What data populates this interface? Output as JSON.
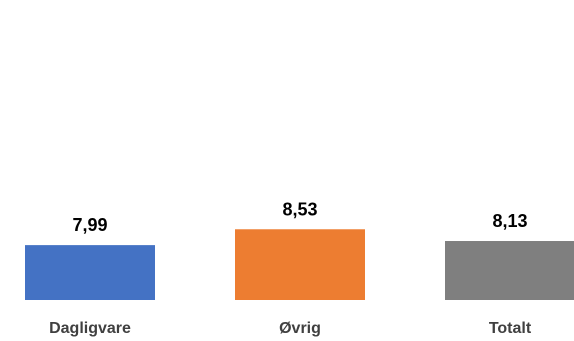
{
  "chart_data": {
    "type": "bar",
    "categories": [
      "Dagligvare",
      "Øvrig",
      "Totalt"
    ],
    "values": [
      7.99,
      8.53,
      8.13
    ],
    "value_labels": [
      "7,99",
      "8,53",
      "8,13"
    ],
    "colors": [
      "#4472C4",
      "#ED7D31",
      "#7F7F7F"
    ],
    "title": "",
    "xlabel": "",
    "ylabel": "",
    "grid": false,
    "legend": "none"
  }
}
